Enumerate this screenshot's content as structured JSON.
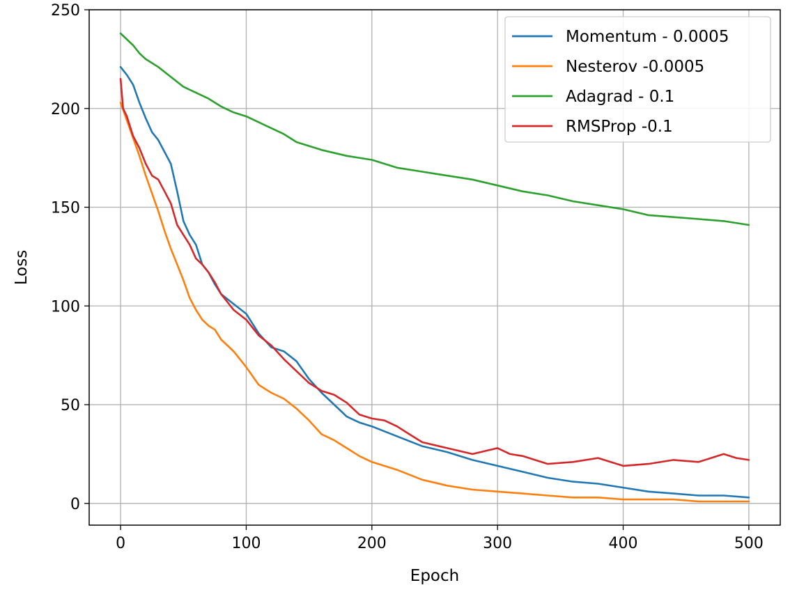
{
  "chart_data": {
    "type": "line",
    "xlabel": "Epoch",
    "ylabel": "Loss",
    "xlim": [
      -25,
      525
    ],
    "ylim": [
      -11,
      250
    ],
    "xticks": [
      0,
      100,
      200,
      300,
      400,
      500
    ],
    "yticks": [
      0,
      50,
      100,
      150,
      200,
      250
    ],
    "grid": true,
    "legend_position": "top-right",
    "series": [
      {
        "name": "Momentum - 0.0005",
        "color": "#1f77b4",
        "x": [
          0,
          5,
          10,
          15,
          20,
          25,
          30,
          35,
          40,
          45,
          50,
          55,
          60,
          65,
          70,
          75,
          80,
          90,
          100,
          110,
          120,
          130,
          140,
          150,
          160,
          170,
          180,
          190,
          200,
          220,
          240,
          260,
          280,
          300,
          320,
          340,
          360,
          380,
          400,
          420,
          440,
          460,
          480,
          500
        ],
        "y": [
          221,
          217,
          212,
          203,
          195,
          188,
          184,
          178,
          172,
          158,
          143,
          136,
          131,
          121,
          117,
          111,
          106,
          101,
          96,
          86,
          79,
          77,
          72,
          63,
          56,
          50,
          44,
          41,
          39,
          34,
          29,
          26,
          22,
          19,
          16,
          13,
          11,
          10,
          8,
          6,
          5,
          4,
          4,
          3
        ]
      },
      {
        "name": "Nesterov -0.0005",
        "color": "#ff7f0e",
        "x": [
          0,
          5,
          10,
          15,
          20,
          25,
          30,
          35,
          40,
          45,
          50,
          55,
          60,
          65,
          70,
          75,
          80,
          85,
          90,
          100,
          110,
          120,
          130,
          140,
          150,
          160,
          170,
          180,
          190,
          200,
          220,
          240,
          260,
          280,
          300,
          320,
          340,
          360,
          380,
          400,
          420,
          440,
          460,
          480,
          500
        ],
        "y": [
          203,
          194,
          185,
          176,
          166,
          157,
          148,
          138,
          129,
          121,
          113,
          104,
          98,
          93,
          90,
          88,
          83,
          80,
          77,
          69,
          60,
          56,
          53,
          48,
          42,
          35,
          32,
          28,
          24,
          21,
          17,
          12,
          9,
          7,
          6,
          5,
          4,
          3,
          3,
          2,
          2,
          2,
          1,
          1,
          1
        ]
      },
      {
        "name": "Adagrad - 0.1",
        "color": "#2ca02c",
        "x": [
          0,
          5,
          10,
          15,
          20,
          30,
          40,
          50,
          60,
          70,
          80,
          90,
          100,
          110,
          120,
          130,
          140,
          150,
          160,
          180,
          200,
          220,
          240,
          260,
          280,
          300,
          320,
          340,
          360,
          380,
          400,
          420,
          440,
          460,
          480,
          500
        ],
        "y": [
          238,
          235,
          232,
          228,
          225,
          221,
          216,
          211,
          208,
          205,
          201,
          198,
          196,
          193,
          190,
          187,
          183,
          181,
          179,
          176,
          174,
          170,
          168,
          166,
          164,
          161,
          158,
          156,
          153,
          151,
          149,
          146,
          145,
          144,
          143,
          141
        ]
      },
      {
        "name": "RMSProp -0.1",
        "color": "#d62728",
        "x": [
          0,
          2,
          5,
          10,
          15,
          20,
          25,
          30,
          35,
          40,
          45,
          50,
          55,
          60,
          65,
          70,
          75,
          80,
          90,
          100,
          110,
          120,
          130,
          140,
          150,
          160,
          170,
          180,
          190,
          200,
          210,
          220,
          230,
          240,
          260,
          280,
          300,
          310,
          320,
          340,
          360,
          380,
          400,
          420,
          440,
          460,
          480,
          490,
          500
        ],
        "y": [
          215,
          200,
          196,
          186,
          180,
          172,
          166,
          164,
          158,
          152,
          141,
          136,
          131,
          124,
          121,
          117,
          112,
          106,
          98,
          93,
          85,
          80,
          73,
          67,
          61,
          57,
          55,
          51,
          45,
          43,
          42,
          39,
          35,
          31,
          28,
          25,
          28,
          25,
          24,
          20,
          21,
          23,
          19,
          20,
          22,
          21,
          25,
          23,
          22
        ]
      }
    ]
  }
}
